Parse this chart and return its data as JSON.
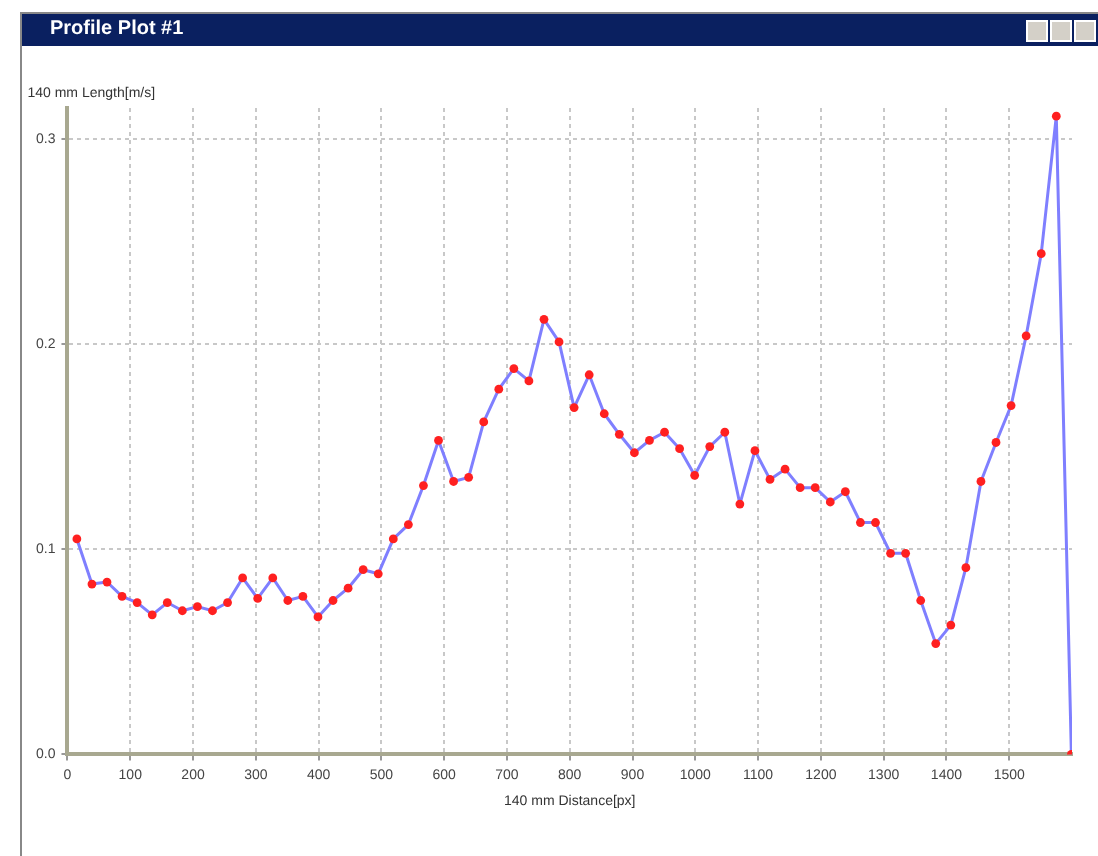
{
  "chart_data": {
    "type": "line",
    "title": "Profile Plot #1",
    "xlabel": "140 mm Distance[px]",
    "ylabel": "140 mm Length[m/s]",
    "x": [
      15,
      39,
      63,
      87,
      111,
      135,
      159,
      183,
      207,
      231,
      255,
      279,
      303,
      327,
      351,
      375,
      399,
      423,
      447,
      471,
      495,
      519,
      543,
      567,
      591,
      615,
      639,
      663,
      687,
      711,
      735,
      759,
      783,
      807,
      831,
      855,
      879,
      903,
      927,
      951,
      975,
      999,
      1023,
      1047,
      1071,
      1095,
      1119,
      1143,
      1167,
      1191,
      1215,
      1239,
      1263,
      1287,
      1311,
      1335,
      1359,
      1383,
      1407,
      1431,
      1455,
      1479,
      1503,
      1527,
      1551,
      1575,
      1599
    ],
    "series": [
      {
        "color": "#7f7fff",
        "values": [
          0.105,
          0.083,
          0.084,
          0.077,
          0.074,
          0.068,
          0.074,
          0.07,
          0.072,
          0.07,
          0.074,
          0.086,
          0.076,
          0.086,
          0.075,
          0.077,
          0.067,
          0.075,
          0.081,
          0.09,
          0.088,
          0.105,
          0.112,
          0.131,
          0.153,
          0.133,
          0.135,
          0.162,
          0.178,
          0.188,
          0.182,
          0.212,
          0.201,
          0.169,
          0.185,
          0.166,
          0.156,
          0.147,
          0.153,
          0.157,
          0.149,
          0.136,
          0.15,
          0.157,
          0.122,
          0.148,
          0.134,
          0.139,
          0.13,
          0.13,
          0.123,
          0.128,
          0.113,
          0.113,
          0.098,
          0.098,
          0.075,
          0.054,
          0.063,
          0.091,
          0.133,
          0.152,
          0.17,
          0.204,
          0.244,
          0.311,
          0
        ]
      }
    ],
    "xlim": [
      0,
      1600
    ],
    "xticks": [
      0,
      100,
      200,
      300,
      400,
      500,
      600,
      700,
      800,
      900,
      1000,
      1100,
      1200,
      1300,
      1400,
      1500
    ],
    "ylim": [
      0,
      0.315
    ],
    "yticks": [
      {
        "value": 0,
        "label": "0.0"
      },
      {
        "value": 0.1,
        "label": "0.1"
      },
      {
        "value": 0.2,
        "label": "0.2"
      },
      {
        "value": 0.3,
        "label": "0.3"
      }
    ],
    "grid": true,
    "legend": false,
    "marker": "circle",
    "line_style": "solid"
  }
}
